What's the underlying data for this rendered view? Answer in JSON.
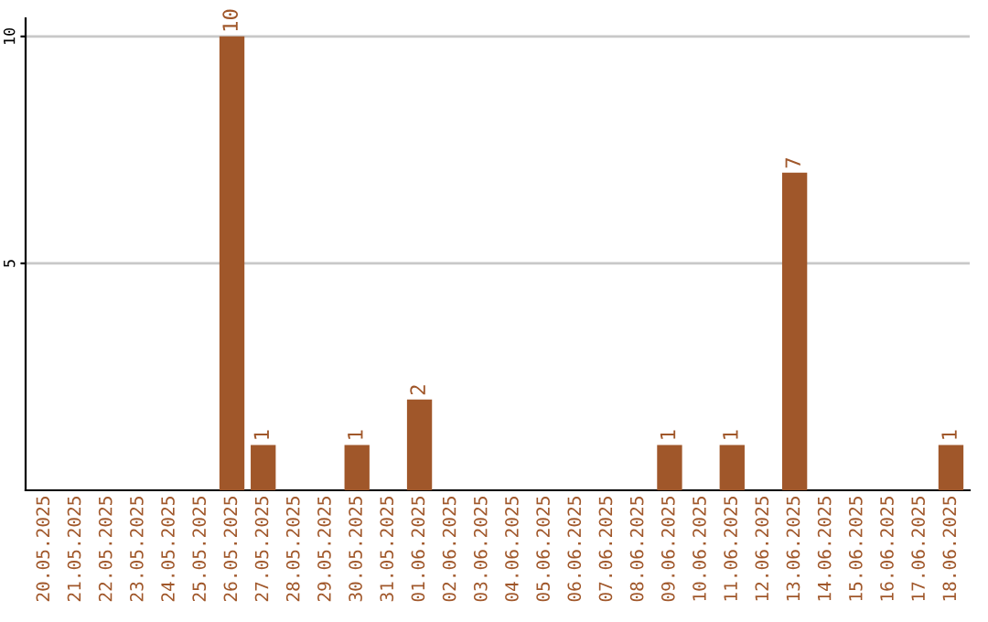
{
  "chart_data": {
    "type": "bar",
    "categories": [
      "20.05.2025",
      "21.05.2025",
      "22.05.2025",
      "23.05.2025",
      "24.05.2025",
      "25.05.2025",
      "26.05.2025",
      "27.05.2025",
      "28.05.2025",
      "29.05.2025",
      "30.05.2025",
      "31.05.2025",
      "01.06.2025",
      "02.06.2025",
      "03.06.2025",
      "04.06.2025",
      "05.06.2025",
      "06.06.2025",
      "07.06.2025",
      "08.06.2025",
      "09.06.2025",
      "10.06.2025",
      "11.06.2025",
      "12.06.2025",
      "13.06.2025",
      "14.06.2025",
      "15.06.2025",
      "16.06.2025",
      "17.06.2025",
      "18.06.2025"
    ],
    "values": [
      0,
      0,
      0,
      0,
      0,
      0,
      10,
      1,
      0,
      0,
      1,
      0,
      2,
      0,
      0,
      0,
      0,
      0,
      0,
      0,
      1,
      0,
      1,
      0,
      7,
      0,
      0,
      0,
      0,
      1
    ],
    "value_labels": [
      null,
      null,
      null,
      null,
      null,
      null,
      "10",
      "1",
      null,
      null,
      "1",
      null,
      "2",
      null,
      null,
      null,
      null,
      null,
      null,
      null,
      "1",
      null,
      "1",
      null,
      "7",
      null,
      null,
      null,
      null,
      "1"
    ],
    "color": "#a0572a",
    "ylim": [
      0,
      10.4
    ],
    "yticks": [
      5,
      10
    ],
    "grid": "y"
  }
}
